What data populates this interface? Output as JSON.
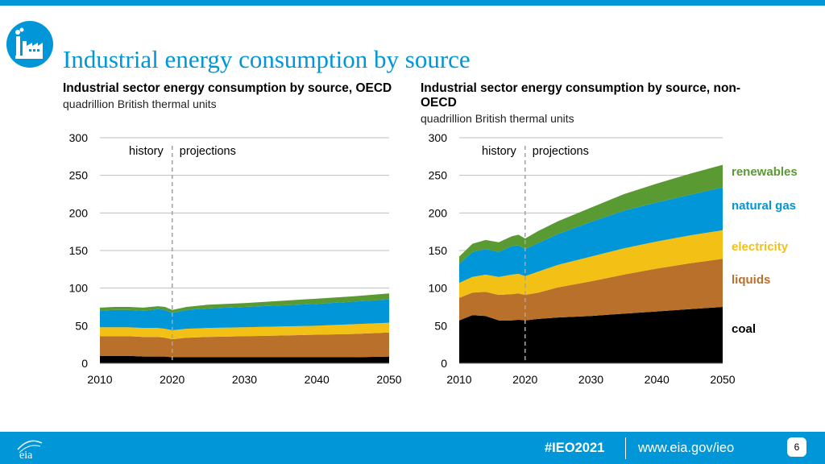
{
  "page": {
    "title": "Industrial energy consumption by source",
    "footer_hashtag": "#IEO2021",
    "footer_url": "www.eia.gov/ieo",
    "page_number": "6",
    "logo_text": "eia",
    "icon_name": "factory-icon"
  },
  "colors": {
    "brand": "#0096d7",
    "coal": "#000000",
    "liquids": "#b8702a",
    "electricity": "#f3c116",
    "natural_gas": "#0096d7",
    "renewables": "#5a9a32"
  },
  "legend": [
    {
      "key": "renewables",
      "label": "renewables",
      "color": "#5a9a32"
    },
    {
      "key": "natural_gas",
      "label": "natural gas",
      "color": "#0096d7"
    },
    {
      "key": "electricity",
      "label": "electricity",
      "color": "#f3c116"
    },
    {
      "key": "liquids",
      "label": "liquids",
      "color": "#b8702a"
    },
    {
      "key": "coal",
      "label": "coal",
      "color": "#000000"
    }
  ],
  "chart_data": [
    {
      "id": "oecd",
      "type": "area",
      "stacked": true,
      "title": "Industrial sector energy consumption by source, OECD",
      "units": "quadrillion British thermal units",
      "history_label": "history",
      "projection_label": "projections",
      "divider_year": 2020,
      "xlim": [
        2010,
        2050
      ],
      "ylim": [
        0,
        300
      ],
      "xticks": [
        2010,
        2020,
        2030,
        2040,
        2050
      ],
      "yticks": [
        0,
        50,
        100,
        150,
        200,
        250,
        300
      ],
      "x": [
        2010,
        2012,
        2014,
        2016,
        2018,
        2019,
        2020,
        2022,
        2025,
        2030,
        2035,
        2040,
        2045,
        2050
      ],
      "series": [
        {
          "name": "coal",
          "values": [
            10,
            10,
            10,
            9,
            9,
            9,
            8,
            8,
            8,
            8,
            8,
            8,
            8,
            9
          ]
        },
        {
          "name": "liquids",
          "values": [
            26,
            26,
            26,
            26,
            26,
            25,
            24,
            26,
            27,
            28,
            29,
            30,
            31,
            32
          ]
        },
        {
          "name": "electricity",
          "values": [
            12,
            12,
            12,
            12,
            12,
            12,
            12,
            12,
            12,
            12,
            12,
            12,
            13,
            13
          ]
        },
        {
          "name": "natural gas",
          "values": [
            22,
            23,
            23,
            23,
            25,
            25,
            23,
            25,
            26,
            27,
            28,
            29,
            30,
            31
          ]
        },
        {
          "name": "renewables",
          "values": [
            4,
            4,
            4,
            4,
            4,
            4,
            4,
            4,
            5,
            5,
            6,
            7,
            7,
            8
          ]
        }
      ]
    },
    {
      "id": "non-oecd",
      "type": "area",
      "stacked": true,
      "title": "Industrial sector energy consumption by source, non-OECD",
      "units": "quadrillion British thermal units",
      "history_label": "history",
      "projection_label": "projections",
      "divider_year": 2020,
      "xlim": [
        2010,
        2050
      ],
      "ylim": [
        0,
        300
      ],
      "xticks": [
        2010,
        2020,
        2030,
        2040,
        2050
      ],
      "yticks": [
        0,
        50,
        100,
        150,
        200,
        250,
        300
      ],
      "x": [
        2010,
        2012,
        2014,
        2016,
        2018,
        2019,
        2020,
        2022,
        2025,
        2030,
        2035,
        2040,
        2045,
        2050
      ],
      "series": [
        {
          "name": "coal",
          "values": [
            57,
            64,
            63,
            57,
            57,
            58,
            57,
            59,
            61,
            63,
            66,
            69,
            72,
            75
          ]
        },
        {
          "name": "liquids",
          "values": [
            30,
            30,
            32,
            34,
            35,
            35,
            34,
            35,
            40,
            46,
            52,
            57,
            61,
            64
          ]
        },
        {
          "name": "electricity",
          "values": [
            20,
            21,
            23,
            24,
            26,
            26,
            25,
            28,
            30,
            33,
            35,
            36,
            37,
            38
          ]
        },
        {
          "name": "natural gas",
          "values": [
            25,
            33,
            34,
            33,
            38,
            38,
            36,
            38,
            41,
            46,
            50,
            52,
            54,
            57
          ]
        },
        {
          "name": "renewables",
          "values": [
            10,
            11,
            12,
            13,
            13,
            14,
            14,
            16,
            17,
            19,
            22,
            25,
            28,
            30
          ]
        }
      ]
    }
  ]
}
